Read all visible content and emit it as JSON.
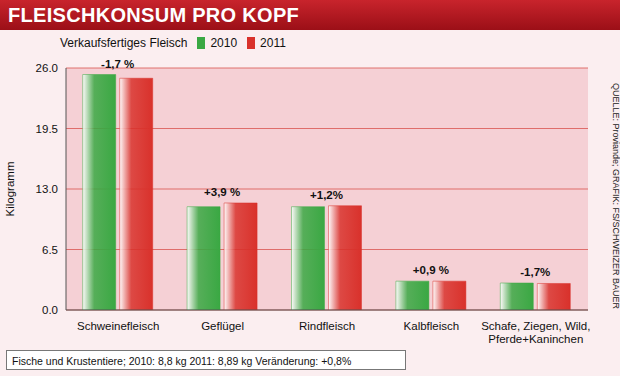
{
  "chart_data": {
    "type": "bar",
    "title": "FLEISCHKONSUM PRO KOPF",
    "subtitle": "Verkaufsfertiges Fleisch",
    "y_label": "Kilogramm",
    "categories": [
      "Schweinefleisch",
      "Geflügel",
      "Rindfleisch",
      "Kalbfleisch",
      "Schafe, Ziegen, Wild, Pferde+Kaninchen"
    ],
    "series": [
      {
        "name": "2010",
        "color": "#3aa843",
        "values": [
          25.3,
          11.1,
          11.1,
          3.1,
          2.9
        ]
      },
      {
        "name": "2011",
        "color": "#d9312b",
        "values": [
          24.9,
          11.5,
          11.2,
          3.1,
          2.85
        ]
      }
    ],
    "annotations": [
      "-1,7 %",
      "+3,9 %",
      "+1,2%",
      "+0,9 %",
      "-1,7%"
    ],
    "ylim": [
      0,
      26
    ],
    "yticks": [
      {
        "value": 0,
        "label": "0.0"
      },
      6.5,
      {
        "value": 13,
        "label": "13.0"
      },
      19.5,
      {
        "value": 26,
        "label": "26.0"
      }
    ],
    "grid": true,
    "legend": "top-left",
    "note": "Fische und Krustentiere; 2010: 8,8 kg 2011: 8,89 kg Veränderung: +0,8%",
    "source": "QUELLE: Proviande; GRAFIK: FS/SCHWEIZER BAUER"
  }
}
